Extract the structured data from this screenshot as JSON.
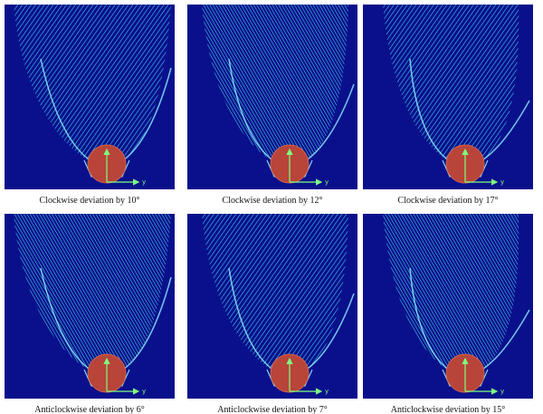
{
  "panels": [
    {
      "caption": "Clockwise deviation by 10°",
      "axis_label": "y"
    },
    {
      "caption": "Clockwise deviation by 12°",
      "axis_label": "y"
    },
    {
      "caption": "Clockwise deviation by 17°",
      "axis_label": "y"
    },
    {
      "caption": "Anticlockwise deviation by 6°",
      "axis_label": "y"
    },
    {
      "caption": "Anticlockwise deviation by 7°",
      "axis_label": "y"
    },
    {
      "caption": "Anticlockwise deviation by 15°",
      "axis_label": "y"
    }
  ]
}
